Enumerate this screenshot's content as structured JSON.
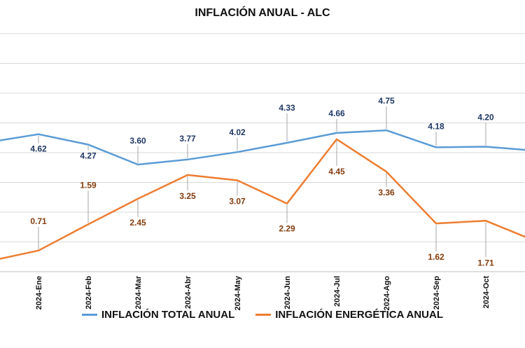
{
  "chart_data": {
    "type": "line",
    "title": "INFLACIÓN ANUAL - ALC",
    "xlabel": "",
    "ylabel": "",
    "categories": [
      "2024-Ene",
      "2024-Feb",
      "2024-Mar",
      "2024-Abr",
      "2024-May",
      "2024-Jun",
      "2024-Jul",
      "2024-Ago",
      "2024-Sep",
      "2024-Oct"
    ],
    "ylim": [
      0,
      8
    ],
    "grid": true,
    "legend": "bottom",
    "series": [
      {
        "name": "INFLACIÓN TOTAL ANUAL",
        "color": "#5B9BD5",
        "label_color": "#1F3864",
        "values": [
          4.62,
          4.27,
          3.6,
          3.77,
          4.02,
          4.33,
          4.66,
          4.75,
          4.18,
          4.2
        ],
        "labels": [
          "4.62",
          "4.27",
          "3.60",
          "3.77",
          "4.02",
          "4.33",
          "4.66",
          "4.75",
          "4.18",
          "4.20"
        ]
      },
      {
        "name": "INFLACIÓN ENERGÉTICA ANUAL",
        "color": "#ED7D31",
        "label_color": "#843C0C",
        "values": [
          0.71,
          1.59,
          2.45,
          3.25,
          3.07,
          2.29,
          4.45,
          3.36,
          1.62,
          1.71
        ],
        "labels": [
          "0.71",
          "1.59",
          "2.45",
          "3.25",
          "3.07",
          "2.29",
          "4.45",
          "3.36",
          "1.62",
          "1.71"
        ]
      }
    ]
  }
}
